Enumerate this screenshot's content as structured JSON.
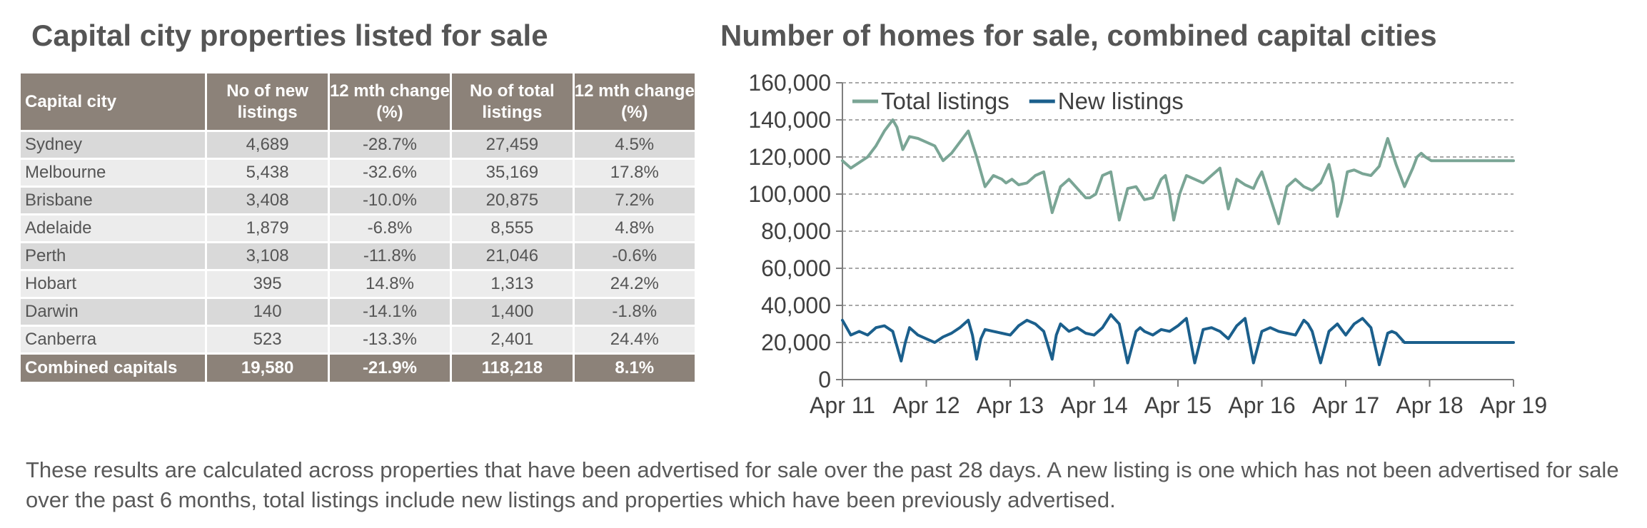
{
  "table": {
    "title": "Capital city properties listed for sale",
    "headers": [
      "Capital city",
      "No of new listings",
      "12 mth change (%)",
      "No of total listings",
      "12 mth change (%)"
    ],
    "rows": [
      {
        "city": "Sydney",
        "new": "4,689",
        "new_change": "-28.7%",
        "total": "27,459",
        "total_change": "4.5%"
      },
      {
        "city": "Melbourne",
        "new": "5,438",
        "new_change": "-32.6%",
        "total": "35,169",
        "total_change": "17.8%"
      },
      {
        "city": "Brisbane",
        "new": "3,408",
        "new_change": "-10.0%",
        "total": "20,875",
        "total_change": "7.2%"
      },
      {
        "city": "Adelaide",
        "new": "1,879",
        "new_change": "-6.8%",
        "total": "8,555",
        "total_change": "4.8%"
      },
      {
        "city": "Perth",
        "new": "3,108",
        "new_change": "-11.8%",
        "total": "21,046",
        "total_change": "-0.6%"
      },
      {
        "city": "Hobart",
        "new": "395",
        "new_change": "14.8%",
        "total": "1,313",
        "total_change": "24.2%"
      },
      {
        "city": "Darwin",
        "new": "140",
        "new_change": "-14.1%",
        "total": "1,400",
        "total_change": "-1.8%"
      },
      {
        "city": "Canberra",
        "new": "523",
        "new_change": "-13.3%",
        "total": "2,401",
        "total_change": "24.4%"
      }
    ],
    "total_row": {
      "city": "Combined capitals",
      "new": "19,580",
      "new_change": "-21.9%",
      "total": "118,218",
      "total_change": "8.1%"
    }
  },
  "chart_data": {
    "type": "line",
    "title": "Number of homes for sale, combined capital cities",
    "xlabel": "",
    "ylabel": "",
    "ylim": [
      0,
      160000
    ],
    "yticks": [
      0,
      20000,
      40000,
      60000,
      80000,
      100000,
      120000,
      140000,
      160000
    ],
    "ytick_labels": [
      "0",
      "20,000",
      "40,000",
      "60,000",
      "80,000",
      "100,000",
      "120,000",
      "140,000",
      "160,000"
    ],
    "xlim": [
      0,
      8
    ],
    "xtick_positions": [
      0,
      1,
      2,
      3,
      4,
      5,
      6,
      7,
      8
    ],
    "xtick_labels": [
      "Apr 11",
      "Apr 12",
      "Apr 13",
      "Apr 14",
      "Apr 15",
      "Apr 16",
      "Apr 17",
      "Apr 18",
      "Apr 19"
    ],
    "grid": "horizontal-dashed",
    "legend_position": "top-left",
    "series": [
      {
        "name": "Total listings",
        "color": "#7aa595",
        "x": [
          0,
          0.1,
          0.2,
          0.3,
          0.4,
          0.5,
          0.6,
          0.65,
          0.72,
          0.8,
          0.9,
          1.0,
          1.1,
          1.2,
          1.3,
          1.4,
          1.5,
          1.6,
          1.7,
          1.8,
          1.9,
          1.95,
          2.02,
          2.1,
          2.2,
          2.3,
          2.4,
          2.5,
          2.6,
          2.7,
          2.8,
          2.9,
          2.95,
          3.02,
          3.1,
          3.2,
          3.3,
          3.4,
          3.5,
          3.6,
          3.7,
          3.8,
          3.85,
          3.9,
          3.95,
          4.02,
          4.1,
          4.2,
          4.3,
          4.4,
          4.5,
          4.6,
          4.7,
          4.8,
          4.9,
          4.95,
          5.0,
          5.1,
          5.2,
          5.3,
          5.4,
          5.5,
          5.6,
          5.7,
          5.8,
          5.85,
          5.9,
          5.95,
          6.02,
          6.1,
          6.2,
          6.3,
          6.4,
          6.5,
          6.6,
          6.7,
          6.8,
          6.85,
          6.9,
          6.95,
          7.02,
          7.1,
          7.2,
          7.3,
          7.4,
          7.5,
          7.6,
          7.7,
          7.8,
          7.85,
          7.9,
          8.0
        ],
        "values": [
          118000,
          114000,
          117000,
          120000,
          126000,
          134000,
          140000,
          136000,
          124000,
          131000,
          130000,
          128000,
          126000,
          118000,
          122000,
          128000,
          134000,
          120000,
          104000,
          110000,
          108000,
          106000,
          108000,
          105000,
          106000,
          110000,
          112000,
          90000,
          104000,
          108000,
          103000,
          98000,
          98000,
          100000,
          110000,
          112000,
          86000,
          103000,
          104000,
          97000,
          98000,
          108000,
          110000,
          100000,
          86000,
          100000,
          110000,
          108000,
          106000,
          110000,
          114000,
          92000,
          108000,
          105000,
          103000,
          108000,
          112000,
          98000,
          84000,
          104000,
          108000,
          104000,
          102000,
          106000,
          116000,
          106000,
          88000,
          96000,
          112000,
          113000,
          111000,
          110000,
          115000,
          130000,
          116000,
          104000,
          114000,
          120000,
          122000,
          120000,
          118000,
          118000,
          118000,
          118000,
          118000,
          118000,
          118000,
          118000,
          118000,
          118000,
          118000,
          118000
        ]
      },
      {
        "name": "New listings",
        "color": "#1b5f8c",
        "x": [
          0,
          0.1,
          0.2,
          0.3,
          0.4,
          0.5,
          0.6,
          0.7,
          0.75,
          0.8,
          0.9,
          1.0,
          1.1,
          1.2,
          1.3,
          1.4,
          1.5,
          1.55,
          1.6,
          1.65,
          1.7,
          1.8,
          1.9,
          2.0,
          2.1,
          2.2,
          2.3,
          2.4,
          2.5,
          2.55,
          2.6,
          2.7,
          2.8,
          2.9,
          3.0,
          3.1,
          3.2,
          3.3,
          3.4,
          3.5,
          3.55,
          3.6,
          3.7,
          3.8,
          3.9,
          4.0,
          4.1,
          4.2,
          4.3,
          4.4,
          4.5,
          4.55,
          4.6,
          4.7,
          4.8,
          4.9,
          5.0,
          5.1,
          5.2,
          5.3,
          5.4,
          5.5,
          5.55,
          5.6,
          5.7,
          5.8,
          5.9,
          6.0,
          6.1,
          6.2,
          6.3,
          6.4,
          6.5,
          6.55,
          6.6,
          6.7,
          6.8,
          6.9,
          7.0,
          7.1,
          7.2,
          7.3,
          7.4,
          7.5,
          7.55,
          7.6,
          7.7,
          7.8,
          7.9,
          8.0
        ],
        "values": [
          32000,
          24000,
          26000,
          24000,
          28000,
          29000,
          26000,
          10000,
          20000,
          28000,
          24000,
          22000,
          20000,
          23000,
          25000,
          28000,
          32000,
          24000,
          11000,
          22000,
          27000,
          26000,
          25000,
          24000,
          29000,
          32000,
          30000,
          26000,
          11000,
          24000,
          30000,
          26000,
          28000,
          25000,
          24000,
          28000,
          35000,
          30000,
          9000,
          26000,
          28000,
          26000,
          24000,
          27000,
          26000,
          29000,
          33000,
          9000,
          27000,
          28000,
          26000,
          24000,
          22000,
          29000,
          33000,
          9000,
          26000,
          28000,
          26000,
          25000,
          24000,
          32000,
          30000,
          26000,
          9000,
          26000,
          30000,
          24000,
          30000,
          33000,
          28000,
          8000,
          25000,
          26000,
          25000,
          20000,
          20000,
          20000,
          20000,
          20000,
          20000,
          20000,
          20000,
          20000,
          20000,
          20000,
          20000,
          20000,
          20000,
          20000
        ]
      }
    ]
  },
  "footnote": "These results are calculated across properties that have been advertised for sale over the past 28 days.  A new listing is one which has not been advertised for sale over the past 6 months, total listings include new listings and properties which have been previously advertised."
}
